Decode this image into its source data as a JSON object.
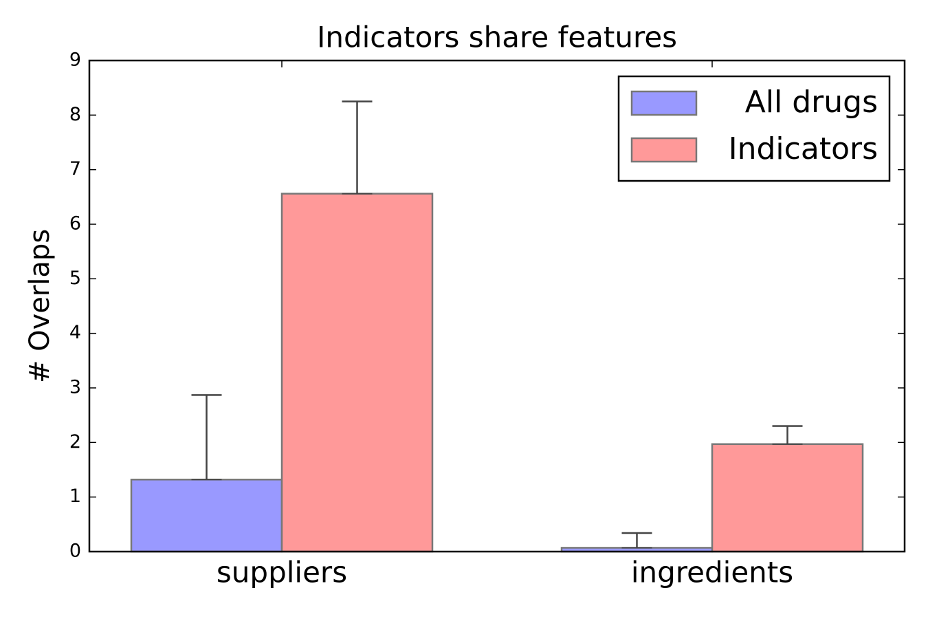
{
  "chart_data": {
    "type": "bar",
    "title": "Indicators share features",
    "ylabel": "# Overlaps",
    "categories": [
      "suppliers",
      "ingredients"
    ],
    "series": [
      {
        "name": "All drugs",
        "color": "#9999ff",
        "values": [
          1.32,
          0.07
        ],
        "errors": [
          1.55,
          0.27
        ]
      },
      {
        "name": "Indicators",
        "color": "#ff9999",
        "values": [
          6.56,
          1.97
        ],
        "errors": [
          1.69,
          0.33
        ]
      }
    ],
    "ylim": [
      0,
      9
    ],
    "yticks": [
      0,
      1,
      2,
      3,
      4,
      5,
      6,
      7,
      8,
      9
    ],
    "legend": "upper right"
  }
}
